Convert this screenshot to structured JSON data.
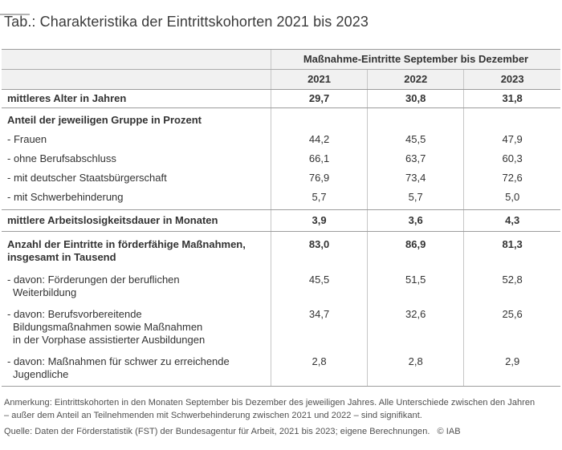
{
  "page": {
    "title": "Tab.: Charakteristika der Eintrittskohorten 2021 bis 2023"
  },
  "table": {
    "col_group_header": "Maßnahme-Eintritte September bis Dezember",
    "year_columns": [
      "2021",
      "2022",
      "2023"
    ],
    "rows": [
      {
        "label": "mittleres Alter in Jahren",
        "values": [
          "29,7",
          "30,8",
          "31,8"
        ]
      },
      {
        "label": "Anteil der jeweiligen Gruppe in Prozent",
        "values": [
          "",
          "",
          ""
        ]
      },
      {
        "label": "- Frauen",
        "values": [
          "44,2",
          "45,5",
          "47,9"
        ]
      },
      {
        "label": "- ohne Berufsabschluss",
        "values": [
          "66,1",
          "63,7",
          "60,3"
        ]
      },
      {
        "label": "- mit deutscher Staatsbürgerschaft",
        "values": [
          "76,9",
          "73,4",
          "72,6"
        ]
      },
      {
        "label": "- mit Schwerbehinderung",
        "values": [
          "5,7",
          "5,7",
          "5,0"
        ]
      },
      {
        "label": "mittlere Arbeitslosigkeitsdauer in Monaten",
        "values": [
          "3,9",
          "3,6",
          "4,3"
        ]
      },
      {
        "label": "Anzahl der Eintritte in förderfähige Maßnahmen,\ninsgesamt in Tausend",
        "values": [
          "83,0",
          "86,9",
          "81,3"
        ]
      },
      {
        "label": "- davon: Förderungen der beruflichen\nWeiterbildung",
        "values": [
          "45,5",
          "51,5",
          "52,8"
        ]
      },
      {
        "label": "- davon: Berufsvorbereitende\nBildungsmaßnahmen sowie Maßnahmen\nin der Vorphase assistierter Ausbildungen",
        "values": [
          "34,7",
          "32,6",
          "25,6"
        ]
      },
      {
        "label": "- davon: Maßnahmen für schwer zu erreichende\nJugendliche",
        "values": [
          "2,8",
          "2,8",
          "2,9"
        ]
      }
    ]
  },
  "footnotes": {
    "note": "Anmerkung: Eintrittskohorten in den Monaten September bis Dezember des jeweiligen Jahres. Alle Unterschiede zwischen den Jahren\n– außer dem Anteil an Teilnehmenden mit Schwerbehinderung zwischen 2021 und 2022 – sind signifikant.",
    "source": "Quelle: Daten der Förderstatistik (FST) der Bundesagentur für Arbeit, 2021 bis 2023; eigene Berechnungen.",
    "copyright": "© IAB"
  },
  "colors": {
    "header_bg": "#f1f1f1",
    "section_rule": "#9c9c9c",
    "column_grid": "#c6c6c6",
    "text": "#333333",
    "note_text": "#4f4f4f",
    "bottom_bar": "#e0e0e0"
  }
}
